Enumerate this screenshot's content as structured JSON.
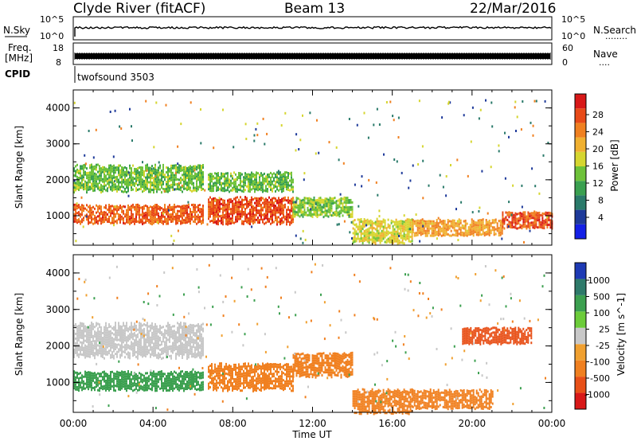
{
  "header": {
    "station": "Clyde River (fitACF)",
    "beam": "Beam 13",
    "date": "22/Mar/2016"
  },
  "panel_nsky": {
    "left_label": "N.Sky",
    "right_label": "N.Search",
    "left_ticks": [
      "10^5",
      "10^0"
    ],
    "right_ticks": [
      "10^5",
      "10^0"
    ],
    "right_dots": "........"
  },
  "panel_freq": {
    "left_label_1": "Freq.",
    "left_label_2": "[MHz]",
    "left_ticks": [
      "18",
      "8"
    ],
    "right_ticks": [
      "60",
      "0"
    ],
    "right_label": "Nave",
    "right_dots": "....",
    "cpid_label": "CPID",
    "cpid_text": "twofsound 3503"
  },
  "panel_power": {
    "ylabel": "Slant Range [km]",
    "yticks": [
      "4000",
      "3000",
      "2000",
      "1000"
    ],
    "colorbar_label": "Power [dB]",
    "colorbar_ticks": [
      "28",
      "24",
      "20",
      "16",
      "12",
      "8",
      "4"
    ],
    "colors": [
      "#1420e6",
      "#1e3a9a",
      "#2a7a6a",
      "#3aa050",
      "#6ec23a",
      "#d6d630",
      "#f0b030",
      "#f08020",
      "#e84a18",
      "#d81818"
    ]
  },
  "panel_velocity": {
    "ylabel": "Slant Range [km]",
    "yticks": [
      "4000",
      "3000",
      "2000",
      "1000"
    ],
    "colorbar_label": "Velocity [m s^-1]",
    "colorbar_ticks": [
      "1000",
      "500",
      "100",
      "25",
      "-25",
      "-100",
      "-500",
      "-1000"
    ],
    "colors": [
      "#1e3ab4",
      "#2e7a6a",
      "#3ca050",
      "#6ccc3a",
      "#c8c8c8",
      "#f0a030",
      "#f08020",
      "#e85018",
      "#d81818"
    ]
  },
  "xaxis": {
    "label": "Time UT",
    "ticks": [
      "00:00",
      "04:00",
      "08:00",
      "12:00",
      "16:00",
      "20:00",
      "00:00"
    ]
  },
  "chart_data": {
    "type": "heatmap",
    "title": "Clyde River (fitACF) Beam 13 22/Mar/2016",
    "xlabel": "Time UT",
    "ylabel": "Slant Range [km]",
    "xlim": [
      "00:00",
      "24:00"
    ],
    "ylim": [
      180,
      4500
    ],
    "panels": [
      {
        "name": "Power",
        "unit": "dB",
        "colorbar_range": [
          0,
          32
        ],
        "bands": [
          {
            "time": [
              "00:00",
              "06:30"
            ],
            "range_km": [
              800,
              1300
            ],
            "value": 26
          },
          {
            "time": [
              "00:00",
              "06:30"
            ],
            "range_km": [
              1700,
              2400
            ],
            "value": 14
          },
          {
            "time": [
              "06:45",
              "11:00"
            ],
            "range_km": [
              800,
              1500
            ],
            "value": 27
          },
          {
            "time": [
              "06:45",
              "11:00"
            ],
            "range_km": [
              1700,
              2200
            ],
            "value": 14
          },
          {
            "time": [
              "11:00",
              "14:00"
            ],
            "range_km": [
              1000,
              1500
            ],
            "value": 15
          },
          {
            "time": [
              "14:00",
              "17:00"
            ],
            "range_km": [
              300,
              900
            ],
            "value": 18
          },
          {
            "time": [
              "17:00",
              "21:30"
            ],
            "range_km": [
              500,
              900
            ],
            "value": 22
          },
          {
            "time": [
              "21:30",
              "24:00"
            ],
            "range_km": [
              700,
              1100
            ],
            "value": 27
          }
        ]
      },
      {
        "name": "Velocity",
        "unit": "m s^-1",
        "colorbar_range": [
          -1000,
          1000
        ],
        "bands": [
          {
            "time": [
              "00:00",
              "06:30"
            ],
            "range_km": [
              800,
              1300
            ],
            "value": 200
          },
          {
            "time": [
              "00:00",
              "06:30"
            ],
            "range_km": [
              1700,
              2600
            ],
            "value": 0
          },
          {
            "time": [
              "06:45",
              "11:00"
            ],
            "range_km": [
              800,
              1500
            ],
            "value": -300
          },
          {
            "time": [
              "11:00",
              "14:00"
            ],
            "range_km": [
              1200,
              1800
            ],
            "value": -400
          },
          {
            "time": [
              "14:00",
              "17:00"
            ],
            "range_km": [
              200,
              800
            ],
            "value": -300
          },
          {
            "time": [
              "17:00",
              "21:00"
            ],
            "range_km": [
              300,
              800
            ],
            "value": -250
          },
          {
            "time": [
              "19:30",
              "23:00"
            ],
            "range_km": [
              2100,
              2500
            ],
            "value": -700
          }
        ]
      }
    ]
  }
}
